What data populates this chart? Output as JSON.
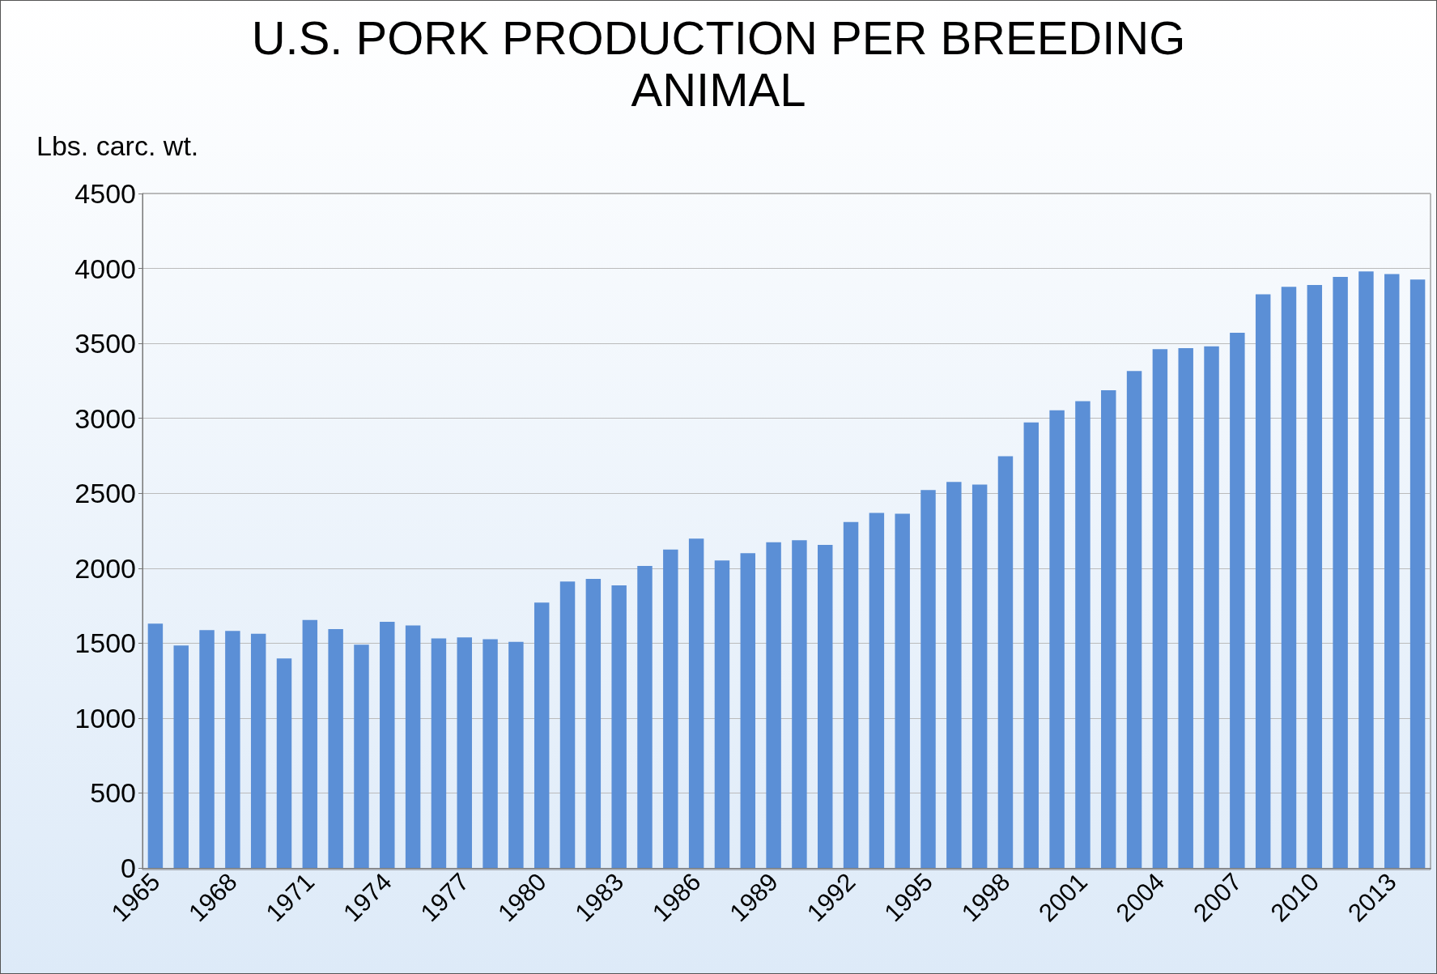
{
  "chart_data": {
    "type": "bar",
    "title": "U.S. PORK PRODUCTION PER BREEDING\nANIMAL",
    "ylabel": "Lbs. carc. wt.",
    "categories": [
      "1965",
      null,
      null,
      "1968",
      null,
      null,
      "1971",
      null,
      null,
      "1974",
      null,
      null,
      "1977",
      null,
      null,
      "1980",
      null,
      null,
      "1983",
      null,
      null,
      "1986",
      null,
      null,
      "1989",
      null,
      null,
      "1992",
      null,
      null,
      "1995",
      null,
      null,
      "1998",
      null,
      null,
      "2001",
      null,
      null,
      "2004",
      null,
      null,
      "2007",
      null,
      null,
      "2010",
      null,
      null,
      "2013",
      null
    ],
    "values": [
      1630,
      1484,
      1587,
      1581,
      1563,
      1398,
      1654,
      1593,
      1490,
      1642,
      1618,
      1532,
      1538,
      1526,
      1508,
      1770,
      1911,
      1929,
      1886,
      2015,
      2125,
      2198,
      2051,
      2100,
      2173,
      2186,
      2155,
      2308,
      2369,
      2363,
      2521,
      2576,
      2558,
      2747,
      2973,
      3053,
      3114,
      3187,
      3315,
      3462,
      3468,
      3480,
      3571,
      3828,
      3877,
      3889,
      3944,
      3980,
      3962,
      3926
    ],
    "color": "#5b8fd6",
    "ylim": [
      0,
      4500
    ],
    "yticks": [
      0,
      500,
      1000,
      1500,
      2000,
      2500,
      3000,
      3500,
      4000,
      4500
    ],
    "grid": "y"
  }
}
